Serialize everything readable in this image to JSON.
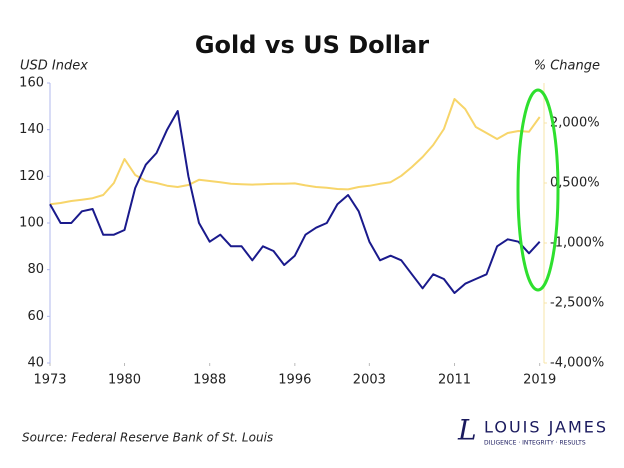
{
  "chart_data": {
    "type": "line",
    "title": "Gold vs US Dollar",
    "y_label": "USD Index",
    "y2_label": "% Change",
    "source": "Source: Federal Reserve Bank of St. Louis",
    "logo": "LOUIS JAMES",
    "logo_tagline": "DILIGENCE · INTEGRITY · RESULTS",
    "x": [
      1973,
      1974,
      1975,
      1976,
      1977,
      1978,
      1979,
      1980,
      1981,
      1982,
      1983,
      1984,
      1985,
      1986,
      1987,
      1988,
      1989,
      1990,
      1991,
      1992,
      1993,
      1994,
      1995,
      1996,
      1997,
      1998,
      1999,
      2000,
      2001,
      2002,
      2003,
      2004,
      2005,
      2006,
      2007,
      2008,
      2009,
      2010,
      2011,
      2012,
      2013,
      2014,
      2015,
      2016,
      2017,
      2018,
      2019
    ],
    "series": [
      {
        "name": "USD Index",
        "color": "#1a1a8c",
        "axis": "y",
        "values": [
          108,
          100,
          100,
          105,
          106,
          95,
          95,
          97,
          115,
          125,
          130,
          140,
          148,
          120,
          100,
          92,
          95,
          90,
          90,
          84,
          90,
          88,
          82,
          86,
          95,
          98,
          100,
          108,
          112,
          105,
          92,
          84,
          86,
          84,
          78,
          72,
          78,
          76,
          70,
          74,
          76,
          78,
          90,
          93,
          92,
          87,
          92
        ]
      },
      {
        "name": "Gold",
        "color": "#f7d56a",
        "axis": "y2",
        "values": [
          -33,
          0,
          50,
          83,
          120,
          200,
          500,
          1100,
          700,
          550,
          500,
          433,
          400,
          450,
          580,
          550,
          520,
          480,
          470,
          460,
          470,
          480,
          480,
          490,
          440,
          400,
          380,
          350,
          340,
          400,
          430,
          480,
          520,
          680,
          900,
          1150,
          1450,
          1850,
          2600,
          2350,
          1900,
          1750,
          1600,
          1750,
          1800,
          1780,
          2150
        ]
      }
    ],
    "xlim": [
      1973,
      2019.5
    ],
    "xticks": [
      1973,
      1980,
      1988,
      1996,
      2003,
      2011,
      2019
    ],
    "ylim": [
      40,
      160
    ],
    "yticks": [
      40,
      60,
      80,
      100,
      120,
      140,
      160
    ],
    "y2lim": [
      -4000,
      3000
    ],
    "y2ticks": [
      {
        "value": -4000,
        "label": "-4,000%"
      },
      {
        "value": -2500,
        "label": "-2,500%"
      },
      {
        "value": -1000,
        "label": "-1,000%"
      },
      {
        "value": 500,
        "label": "0,500%"
      },
      {
        "value": 2000,
        "label": "2,000%"
      }
    ]
  }
}
